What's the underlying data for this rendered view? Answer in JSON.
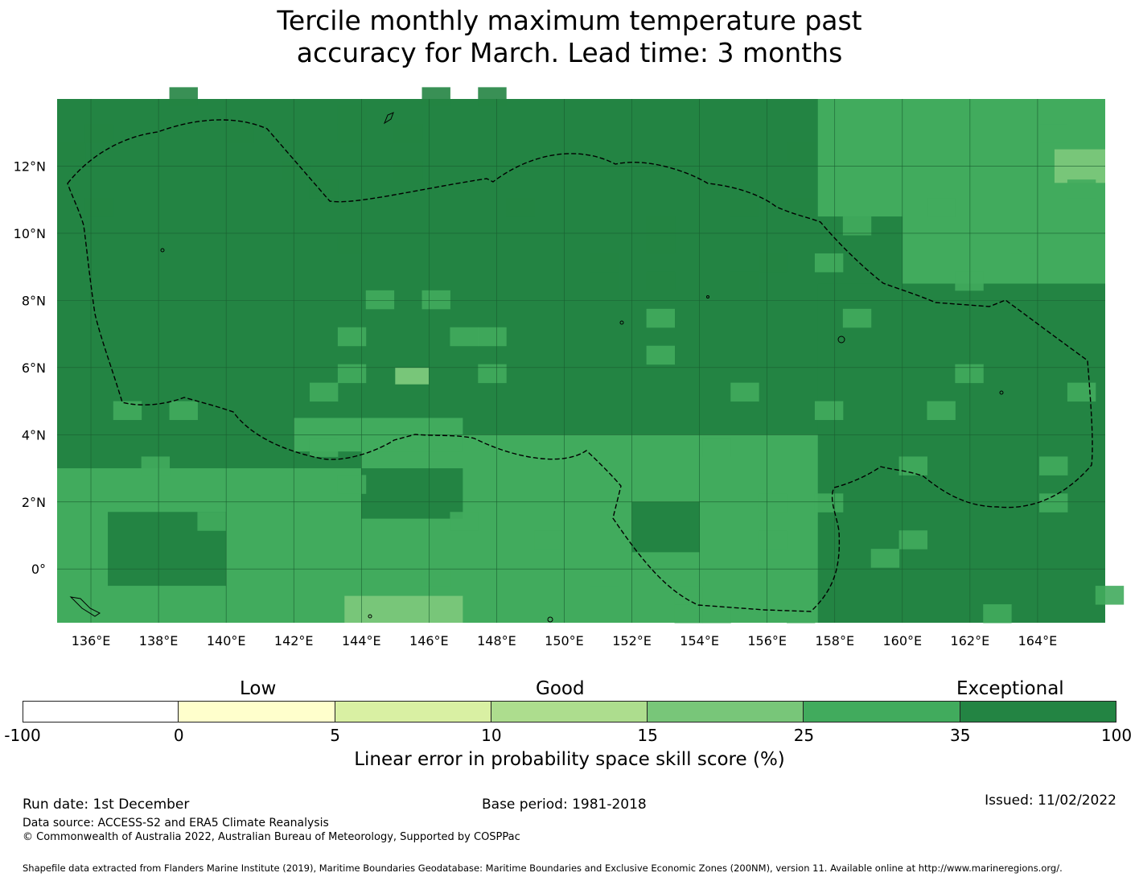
{
  "title": {
    "line1": "Tercile monthly maximum temperature past",
    "line2": "accuracy for March. Lead time: 3 months"
  },
  "map": {
    "lon_range": [
      135,
      166
    ],
    "lat_range": [
      -1.6,
      14
    ],
    "x_ticks": [
      "136°E",
      "138°E",
      "140°E",
      "142°E",
      "144°E",
      "146°E",
      "148°E",
      "150°E",
      "152°E",
      "154°E",
      "156°E",
      "158°E",
      "160°E",
      "162°E",
      "164°E"
    ],
    "x_tick_values": [
      136,
      138,
      140,
      142,
      144,
      146,
      148,
      150,
      152,
      154,
      156,
      158,
      160,
      162,
      164
    ],
    "y_ticks": [
      "12°N",
      "10°N",
      "8°N",
      "6°N",
      "4°N",
      "2°N",
      "0°"
    ],
    "y_tick_values": [
      12,
      10,
      8,
      6,
      4,
      2,
      0
    ],
    "grid": true,
    "cell_deg": [
      0.83,
      0.55
    ],
    "category_colors": [
      "#ffffff",
      "#ffffcc",
      "#d9f0a3",
      "#addd8e",
      "#78c679",
      "#41ab5d",
      "#238443"
    ],
    "base_category": 6,
    "patches": [
      {
        "lon": [
          160,
          166
        ],
        "lat": [
          8.5,
          14
        ],
        "cat": 5
      },
      {
        "lon": [
          157.5,
          160
        ],
        "lat": [
          10.5,
          14
        ],
        "cat": 5
      },
      {
        "lon": [
          157.5,
          160
        ],
        "lat": [
          2,
          8.5
        ],
        "cat": 6
      },
      {
        "lon": [
          135,
          144
        ],
        "lat": [
          -1.6,
          3
        ],
        "cat": 5
      },
      {
        "lon": [
          144,
          157.5
        ],
        "lat": [
          -1.6,
          4
        ],
        "cat": 5
      },
      {
        "lon": [
          136.5,
          140
        ],
        "lat": [
          -0.5,
          1.7
        ],
        "cat": 6
      },
      {
        "lon": [
          142,
          147
        ],
        "lat": [
          3.5,
          4.5
        ],
        "cat": 5
      },
      {
        "lon": [
          143.5,
          147
        ],
        "lat": [
          -1.6,
          -0.8
        ],
        "cat": 4
      },
      {
        "lon": [
          145,
          146
        ],
        "lat": [
          5.5,
          6
        ],
        "cat": 4
      },
      {
        "lon": [
          164.5,
          166
        ],
        "lat": [
          11.5,
          12.5
        ],
        "cat": 4
      },
      {
        "lon": [
          152,
          154
        ],
        "lat": [
          0.5,
          2
        ],
        "cat": 6
      },
      {
        "lon": [
          144,
          147
        ],
        "lat": [
          1.5,
          3
        ],
        "cat": 6
      }
    ]
  },
  "legend": {
    "categories": [
      "Low",
      "Good",
      "Exceptional"
    ],
    "ticks": [
      "-100",
      "0",
      "5",
      "10",
      "15",
      "25",
      "35",
      "100"
    ],
    "colors": [
      "#ffffff",
      "#ffffcc",
      "#d9f0a3",
      "#addd8e",
      "#78c679",
      "#41ab5d",
      "#238443"
    ],
    "label": "Linear error in probability space skill score (%)"
  },
  "footer": {
    "run_date": "Run date: 1st December",
    "base_period": "Base period: 1981-2018",
    "issued": "Issued: 11/02/2022",
    "data_source": "Data source: ACCESS-S2 and ERA5 Climate Reanalysis",
    "copyright": "© Commonwealth of Australia 2022, Australian Bureau of Meteorology, Supported by COSPPac",
    "shapefile": "Shapefile data extracted from Flanders Marine Institute (2019), Maritime Boundaries Geodatabase: Maritime Boundaries and Exclusive Economic Zones (200NM), version 11. Available online at http://www.marineregions.org/."
  }
}
